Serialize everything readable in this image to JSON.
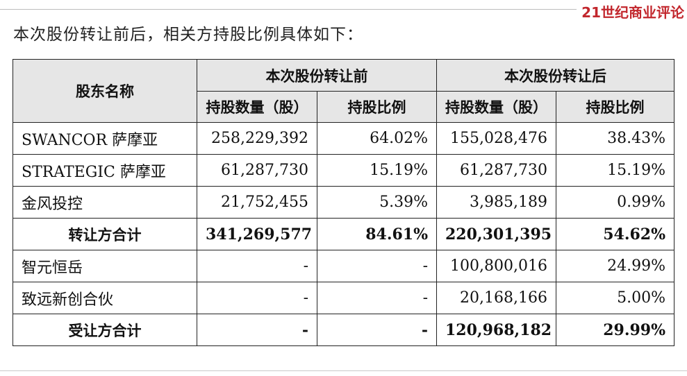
{
  "brand": "21世纪商业评论",
  "intro_text": "本次股份转让前后，相关方持股比例具体如下：",
  "table": {
    "header": {
      "shareholder": "股东名称",
      "before_group": "本次股份转让前",
      "after_group": "本次股份转让后",
      "shares_col": "持股数量（股）",
      "ratio_col": "持股比例"
    },
    "rows": [
      {
        "name": "SWANCOR 萨摩亚",
        "before_shares": "258,229,392",
        "before_ratio": "64.02%",
        "after_shares": "155,028,476",
        "after_ratio": "38.43%",
        "total": false
      },
      {
        "name": "STRATEGIC 萨摩亚",
        "before_shares": "61,287,730",
        "before_ratio": "15.19%",
        "after_shares": "61,287,730",
        "after_ratio": "15.19%",
        "total": false
      },
      {
        "name": "金风投控",
        "before_shares": "21,752,455",
        "before_ratio": "5.39%",
        "after_shares": "3,985,189",
        "after_ratio": "0.99%",
        "total": false
      },
      {
        "name": "转让方合计",
        "before_shares": "341,269,577",
        "before_ratio": "84.61%",
        "after_shares": "220,301,395",
        "after_ratio": "54.62%",
        "total": true
      },
      {
        "name": "智元恒岳",
        "before_shares": "-",
        "before_ratio": "-",
        "after_shares": "100,800,016",
        "after_ratio": "24.99%",
        "total": false
      },
      {
        "name": "致远新创合伙",
        "before_shares": "-",
        "before_ratio": "-",
        "after_shares": "20,168,166",
        "after_ratio": "5.00%",
        "total": false
      },
      {
        "name": "受让方合计",
        "before_shares": "-",
        "before_ratio": "-",
        "after_shares": "120,968,182",
        "after_ratio": "29.99%",
        "total": true
      }
    ]
  }
}
